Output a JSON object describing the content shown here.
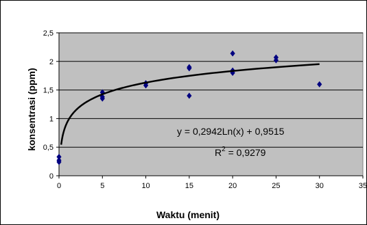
{
  "chart_data": {
    "type": "scatter",
    "xlabel": "Waktu (menit)",
    "ylabel": "konsentrasi (ppm)",
    "xlim": [
      0,
      35
    ],
    "ylim": [
      0,
      2.5
    ],
    "x_ticks": [
      "0",
      "5",
      "10",
      "15",
      "20",
      "25",
      "30",
      "35"
    ],
    "y_ticks": [
      "0",
      "0,5",
      "1",
      "1,5",
      "2",
      "2,5"
    ],
    "grid": true,
    "plot_background": "#c0c0c0",
    "point_color": "#000080",
    "series": [
      {
        "points": [
          {
            "x": 0,
            "y": 0.24
          },
          {
            "x": 0,
            "y": 0.27
          },
          {
            "x": 0,
            "y": 0.33
          },
          {
            "x": 5,
            "y": 1.35
          },
          {
            "x": 5,
            "y": 1.38
          },
          {
            "x": 5,
            "y": 1.46
          },
          {
            "x": 10,
            "y": 1.58
          },
          {
            "x": 10,
            "y": 1.62
          },
          {
            "x": 15,
            "y": 1.4
          },
          {
            "x": 15,
            "y": 1.88
          },
          {
            "x": 15,
            "y": 1.9
          },
          {
            "x": 20,
            "y": 1.8
          },
          {
            "x": 20,
            "y": 1.84
          },
          {
            "x": 20,
            "y": 2.14
          },
          {
            "x": 25,
            "y": 2.02
          },
          {
            "x": 25,
            "y": 2.07
          },
          {
            "x": 30,
            "y": 1.6
          }
        ]
      }
    ],
    "trendline": {
      "type": "logarithmic",
      "a": 0.2942,
      "b": 0.9515,
      "x_range": [
        0.25,
        30
      ],
      "color": "#000000"
    },
    "equation_text": "y = 0,2942Ln(x)  + 0,9515",
    "r2_label": "R",
    "r2_sup": "2",
    "r2_value": " = 0,9279"
  }
}
